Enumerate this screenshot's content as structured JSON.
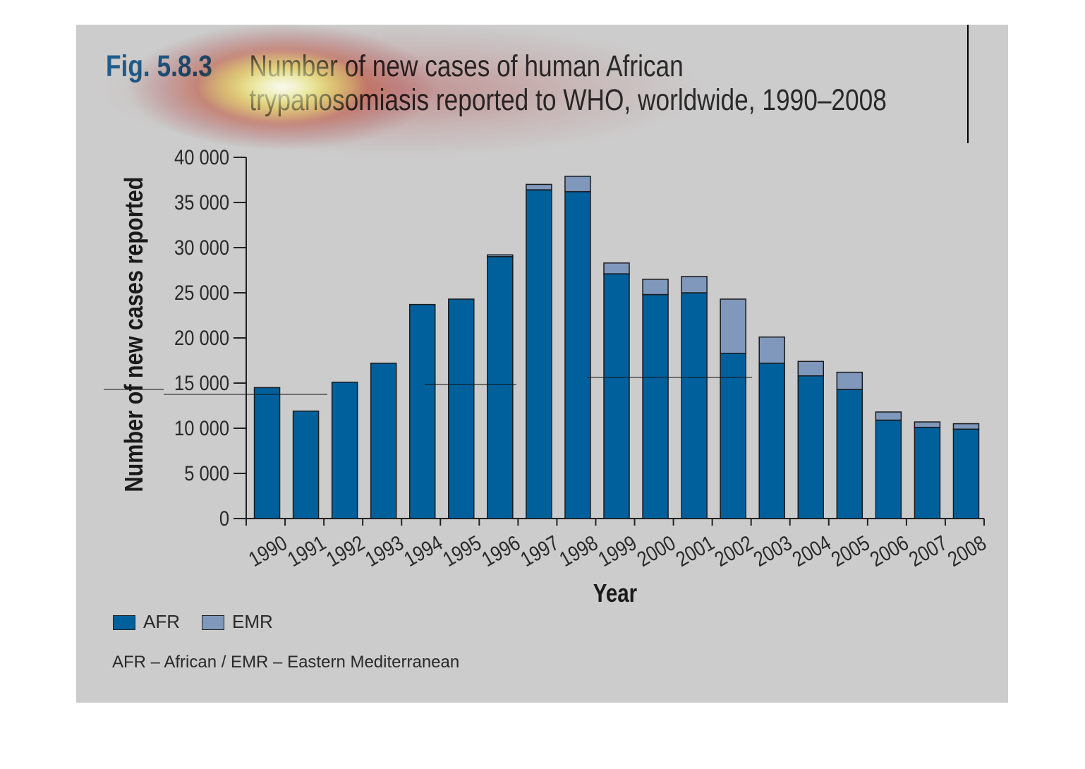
{
  "figure": {
    "number": "Fig. 5.8.3",
    "title_line1": "Number of new cases of human African",
    "title_line2": "trypanosomiasis reported to WHO, worldwide, 1990–2008"
  },
  "legend": {
    "afr_label": "AFR",
    "emr_label": "EMR"
  },
  "footnote": "AFR – African / EMR – Eastern Mediterranean",
  "colors": {
    "afr": "#00609c",
    "emr": "#7f98bc",
    "background": "#cccccc"
  },
  "chart_data": {
    "type": "bar",
    "stacked": true,
    "title": "Number of new cases of human African trypanosomiasis reported to WHO, worldwide, 1990–2008",
    "xlabel": "Year",
    "ylabel": "Number of new cases reported",
    "ylim": [
      0,
      40000
    ],
    "yticks": [
      0,
      5000,
      10000,
      15000,
      20000,
      25000,
      30000,
      35000,
      40000
    ],
    "ytick_labels": [
      "0",
      "5 000",
      "10 000",
      "15 000",
      "20 000",
      "25 000",
      "30 000",
      "35 000",
      "40 000"
    ],
    "categories": [
      "1990",
      "1991",
      "1992",
      "1993",
      "1994",
      "1995",
      "1996",
      "1997",
      "1998",
      "1999",
      "2000",
      "2001",
      "2002",
      "2003",
      "2004",
      "2005",
      "2006",
      "2007",
      "2008"
    ],
    "series": [
      {
        "name": "AFR",
        "values": [
          14500,
          11900,
          15100,
          17200,
          23700,
          24300,
          29000,
          36400,
          36200,
          27100,
          24800,
          25000,
          18300,
          17200,
          15800,
          14300,
          10900,
          10100,
          9900
        ]
      },
      {
        "name": "EMR",
        "values": [
          0,
          0,
          0,
          0,
          0,
          0,
          200,
          600,
          1700,
          1200,
          1700,
          1800,
          6000,
          2900,
          1600,
          1900,
          900,
          600,
          600
        ]
      }
    ],
    "grid": false,
    "legend_position": "bottom-left"
  }
}
